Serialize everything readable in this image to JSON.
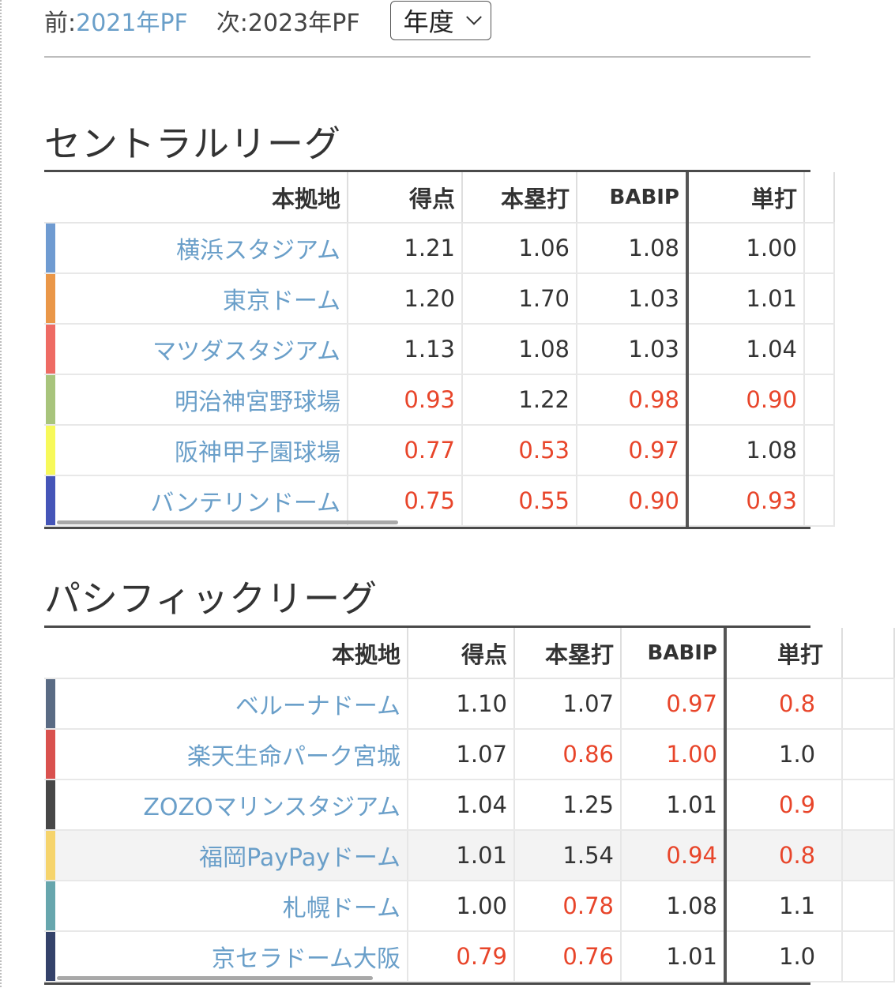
{
  "nav": {
    "prev_prefix": "前:",
    "prev_link": "2021年PF",
    "next_text": "次:2023年PF",
    "select_value": "年度"
  },
  "colors": {
    "link": "#6a9fc9",
    "negative": "#e8452a",
    "text": "#333333"
  },
  "central": {
    "title": "セントラルリーグ",
    "headers": [
      "本拠地",
      "得点",
      "本塁打",
      "BABIP",
      "単打"
    ],
    "rows": [
      {
        "color": "#6f9bd1",
        "name": "横浜スタジアム",
        "values": [
          "1.21",
          "1.06",
          "1.08",
          "1.00"
        ],
        "low": [
          false,
          false,
          false,
          false
        ]
      },
      {
        "color": "#ea9748",
        "name": "東京ドーム",
        "values": [
          "1.20",
          "1.70",
          "1.03",
          "1.01"
        ],
        "low": [
          false,
          false,
          false,
          false
        ]
      },
      {
        "color": "#ee6b64",
        "name": "マツダスタジアム",
        "values": [
          "1.13",
          "1.08",
          "1.03",
          "1.04"
        ],
        "low": [
          false,
          false,
          false,
          false
        ]
      },
      {
        "color": "#a8c47c",
        "name": "明治神宮野球場",
        "values": [
          "0.93",
          "1.22",
          "0.98",
          "0.90"
        ],
        "low": [
          true,
          false,
          true,
          true
        ]
      },
      {
        "color": "#f7f95a",
        "name": "阪神甲子園球場",
        "values": [
          "0.77",
          "0.53",
          "0.97",
          "1.08"
        ],
        "low": [
          true,
          true,
          true,
          false
        ]
      },
      {
        "color": "#4555b8",
        "name": "バンテリンドーム",
        "values": [
          "0.75",
          "0.55",
          "0.90",
          "0.93"
        ],
        "low": [
          true,
          true,
          true,
          true
        ]
      }
    ]
  },
  "pacific": {
    "title": "パシフィックリーグ",
    "headers": [
      "本拠地",
      "得点",
      "本塁打",
      "BABIP",
      "単打"
    ],
    "rows": [
      {
        "color": "#5a6b84",
        "name": "ベルーナドーム",
        "values": [
          "1.10",
          "1.07",
          "0.97",
          "0.8"
        ],
        "low": [
          false,
          false,
          true,
          true
        ]
      },
      {
        "color": "#d9514e",
        "name": "楽天生命パーク宮城",
        "values": [
          "1.07",
          "0.86",
          "1.00",
          "1.0"
        ],
        "low": [
          false,
          true,
          true,
          false
        ]
      },
      {
        "color": "#474747",
        "name": "ZOZOマリンスタジアム",
        "values": [
          "1.04",
          "1.25",
          "1.01",
          "0.9"
        ],
        "low": [
          false,
          false,
          false,
          true
        ]
      },
      {
        "color": "#f6d46c",
        "name": "福岡PayPayドーム",
        "values": [
          "1.01",
          "1.54",
          "0.94",
          "0.8"
        ],
        "low": [
          false,
          false,
          true,
          true
        ]
      },
      {
        "color": "#67a6ad",
        "name": "札幌ドーム",
        "values": [
          "1.00",
          "0.78",
          "1.08",
          "1.1"
        ],
        "low": [
          false,
          true,
          false,
          false
        ]
      },
      {
        "color": "#34426a",
        "name": "京セラドーム大阪",
        "values": [
          "0.79",
          "0.76",
          "1.01",
          "1.0"
        ],
        "low": [
          true,
          true,
          false,
          false
        ]
      }
    ]
  }
}
